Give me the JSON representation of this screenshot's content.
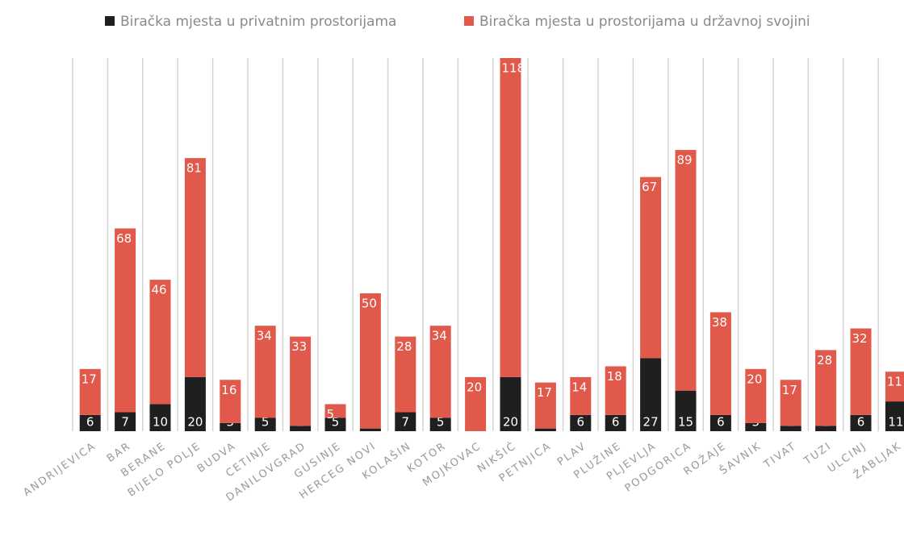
{
  "chart_data": {
    "type": "stacked_bar",
    "categories": [
      "ANDRIJEVICA",
      "BAR",
      "BERANE",
      "BIJELO POLJE",
      "BUDVA",
      "CETINJE",
      "DANILOVGRAD",
      "GUSINJE",
      "HERCEG NOVI",
      "KOLAŠIN",
      "KOTOR",
      "MOJKOVAC",
      "NIKŠIĆ",
      "PETNJICA",
      "PLAV",
      "PLUŽINE",
      "PLJEVLJA",
      "PODGORICA",
      "ROŽAJE",
      "ŠAVNIK",
      "TIVAT",
      "TUZI",
      "ULCINJ",
      "ŽABLJAK"
    ],
    "series": [
      {
        "name": "Biračka mjesta u privatnim prostorijama",
        "color": "#1f1f1f",
        "values": [
          6,
          7,
          10,
          20,
          3,
          5,
          2,
          5,
          1,
          7,
          5,
          0,
          20,
          1,
          6,
          6,
          27,
          15,
          6,
          3,
          2,
          2,
          6,
          11
        ]
      },
      {
        "name": "Biračka mjesta u prostorijama u državnoj svojini",
        "color": "#e0594a",
        "values": [
          17,
          68,
          46,
          81,
          16,
          34,
          33,
          5,
          50,
          28,
          34,
          20,
          118,
          17,
          14,
          18,
          67,
          89,
          38,
          20,
          17,
          28,
          32,
          11
        ]
      }
    ],
    "legend": "top"
  }
}
